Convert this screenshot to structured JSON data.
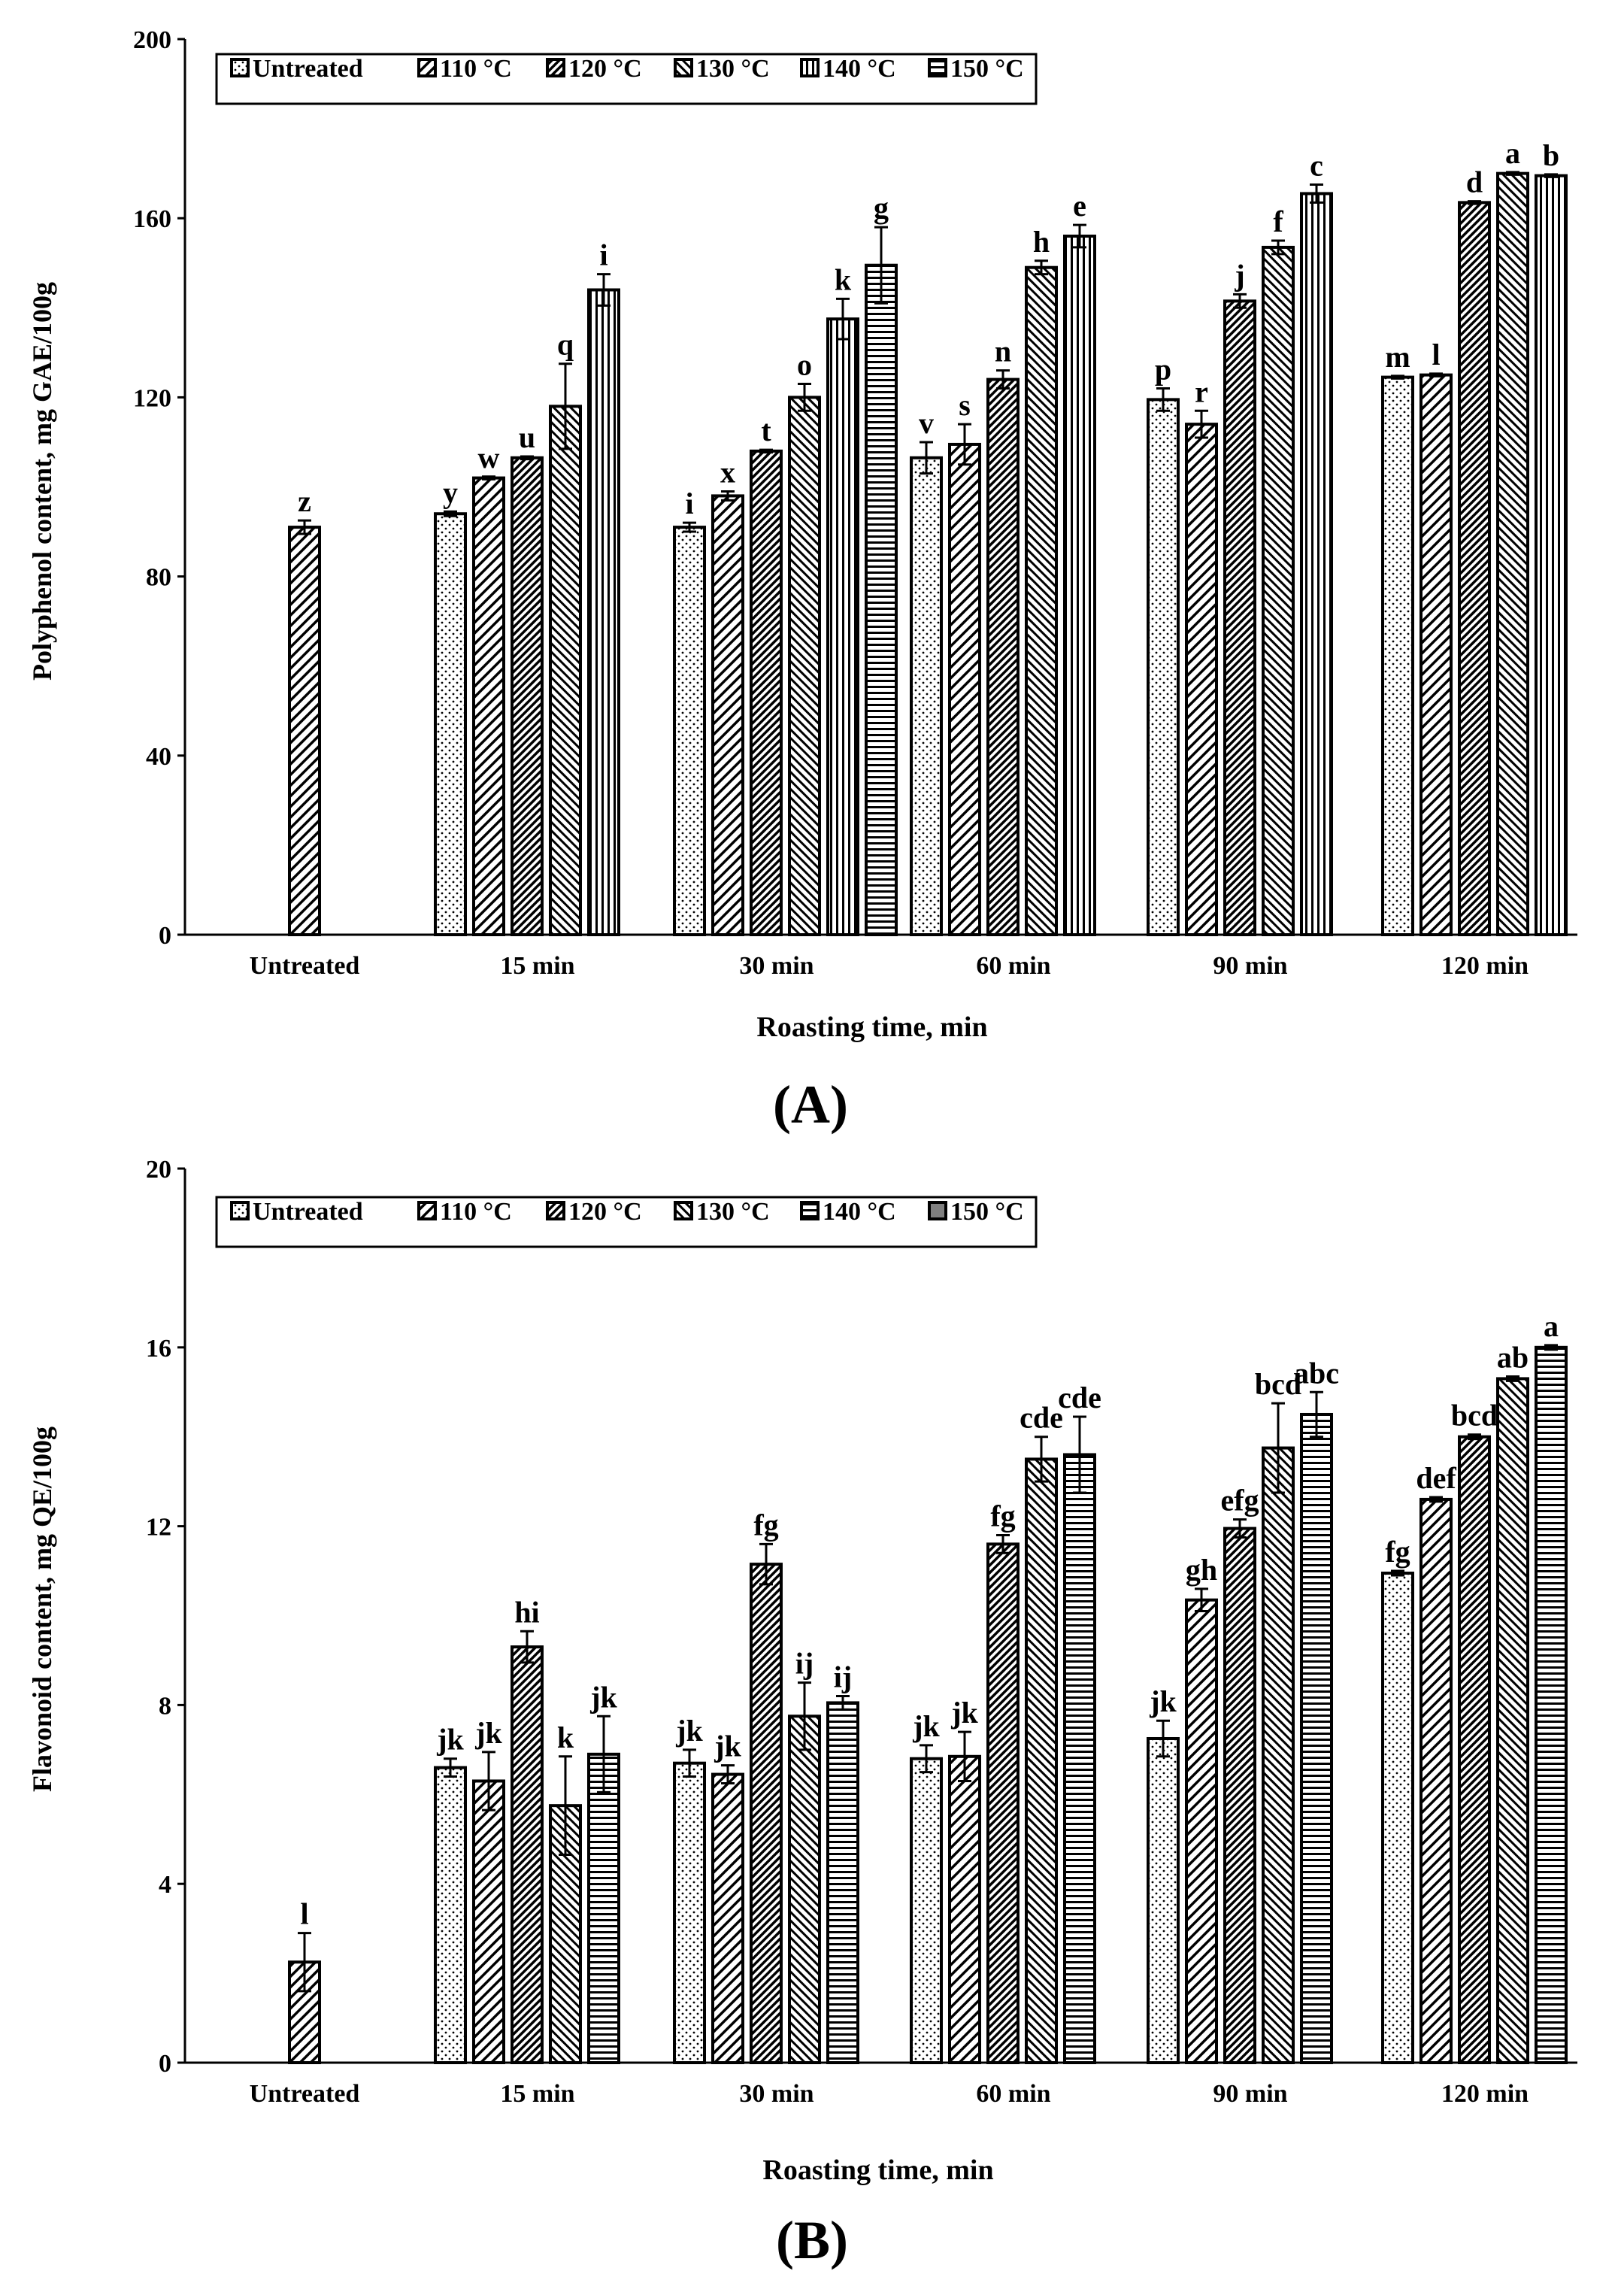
{
  "figure": {
    "panels": [
      "(A)",
      "(B)"
    ]
  },
  "colors": {
    "ink": "#000000",
    "background": "#ffffff",
    "dark_fill": "#808080"
  },
  "chart_data": [
    {
      "type": "bar",
      "panel_label": "(A)",
      "ylabel": "Polyphenol content, mg GAE/100g",
      "xlabel": "Roasting time, min",
      "ylim": [
        0,
        200
      ],
      "yticks": [
        0,
        40,
        80,
        120,
        160,
        200
      ],
      "legend_position": "top-left",
      "categories": [
        "Untreated",
        "15 min",
        "30 min",
        "60 min",
        "90 min",
        "120 min"
      ],
      "series": [
        {
          "name": "Untreated",
          "pattern": "dots",
          "values": [
            null,
            94,
            91,
            106.5,
            119.5,
            124.5
          ],
          "errors": [
            null,
            0.5,
            1,
            3.5,
            2.5,
            0.3
          ],
          "letters": [
            null,
            "y",
            "i",
            "v",
            "p",
            "m"
          ]
        },
        {
          "name": "110 °C",
          "pattern": "diag",
          "values": [
            91,
            102,
            98,
            109.5,
            114,
            125
          ],
          "errors": [
            1.5,
            0.3,
            1,
            4.5,
            3,
            0.3
          ],
          "letters": [
            "z",
            "w",
            "x",
            "s",
            "r",
            "l"
          ]
        },
        {
          "name": "120 °C",
          "pattern": "diag-dense",
          "values": [
            null,
            106.5,
            108,
            124,
            141.5,
            163.5
          ],
          "errors": [
            null,
            0.3,
            0.3,
            2,
            1.5,
            0.3
          ],
          "letters": [
            null,
            "u",
            "t",
            "n",
            "j",
            "d"
          ]
        },
        {
          "name": "130 °C",
          "pattern": "diag-back",
          "values": [
            null,
            118,
            120,
            149,
            153.5,
            170
          ],
          "errors": [
            null,
            9.5,
            3,
            1.5,
            1.5,
            0.3
          ],
          "letters": [
            null,
            "q",
            "o",
            "h",
            "f",
            "a"
          ]
        },
        {
          "name": "140 °C",
          "pattern": "vstripes",
          "values": [
            null,
            144,
            137.5,
            156,
            165.5,
            169.5
          ],
          "errors": [
            null,
            3.5,
            4.5,
            2.5,
            2,
            0.3
          ],
          "letters": [
            null,
            "i",
            "k",
            "e",
            "c",
            "b"
          ]
        },
        {
          "name": "150 °C",
          "pattern": "hstripes",
          "values": [
            null,
            null,
            149.5,
            null,
            null,
            null
          ],
          "errors": [
            null,
            null,
            8.5,
            null,
            null,
            null
          ],
          "letters": [
            null,
            null,
            "g",
            null,
            null,
            null
          ]
        }
      ]
    },
    {
      "type": "bar",
      "panel_label": "(B)",
      "ylabel": "Flavonoid content, mg QE/100g",
      "xlabel": "Roasting time, min",
      "ylim": [
        0,
        20
      ],
      "yticks": [
        0,
        4,
        8,
        12,
        16,
        20
      ],
      "legend_position": "top-left",
      "categories": [
        "Untreated",
        "15 min",
        "30 min",
        "60 min",
        "90 min",
        "120 min"
      ],
      "series": [
        {
          "name": "Untreated",
          "pattern": "dots",
          "values": [
            null,
            6.6,
            6.7,
            6.8,
            7.25,
            10.95
          ],
          "errors": [
            null,
            0.2,
            0.3,
            0.3,
            0.4,
            0.05
          ],
          "letters": [
            null,
            "jk",
            "jk",
            "jk",
            "jk",
            "fg"
          ]
        },
        {
          "name": "110 °C",
          "pattern": "diag",
          "values": [
            2.25,
            6.3,
            6.45,
            6.85,
            10.35,
            12.6
          ],
          "errors": [
            0.65,
            0.65,
            0.2,
            0.55,
            0.25,
            0.05
          ],
          "letters": [
            "l",
            "jk",
            "jk",
            "jk",
            "gh",
            "def"
          ]
        },
        {
          "name": "120 °C",
          "pattern": "diag-dense",
          "values": [
            null,
            9.3,
            11.15,
            11.6,
            11.95,
            14
          ],
          "errors": [
            null,
            0.35,
            0.45,
            0.2,
            0.2,
            0.05
          ],
          "letters": [
            null,
            "hi",
            "fg",
            "fg",
            "efg",
            "bcd"
          ]
        },
        {
          "name": "130 °C",
          "pattern": "diag-back",
          "values": [
            null,
            5.75,
            7.75,
            13.5,
            13.75,
            15.3
          ],
          "errors": [
            null,
            1.1,
            0.75,
            0.5,
            1,
            0.05
          ],
          "letters": [
            null,
            "k",
            "ij",
            "cde",
            "bcd",
            "ab"
          ]
        },
        {
          "name": "140 °C",
          "pattern": "hstripes",
          "values": [
            null,
            6.9,
            8.05,
            13.6,
            14.5,
            16
          ],
          "errors": [
            null,
            0.85,
            0.15,
            0.85,
            0.5,
            0.05
          ],
          "letters": [
            null,
            "jk",
            "ij",
            "cde",
            "abc",
            "a"
          ]
        },
        {
          "name": "150 °C",
          "pattern": "gray",
          "values": [
            null,
            null,
            null,
            null,
            null,
            null
          ],
          "errors": [
            null,
            null,
            null,
            null,
            null,
            null
          ],
          "letters": [
            null,
            null,
            null,
            null,
            null,
            null
          ]
        }
      ]
    }
  ]
}
